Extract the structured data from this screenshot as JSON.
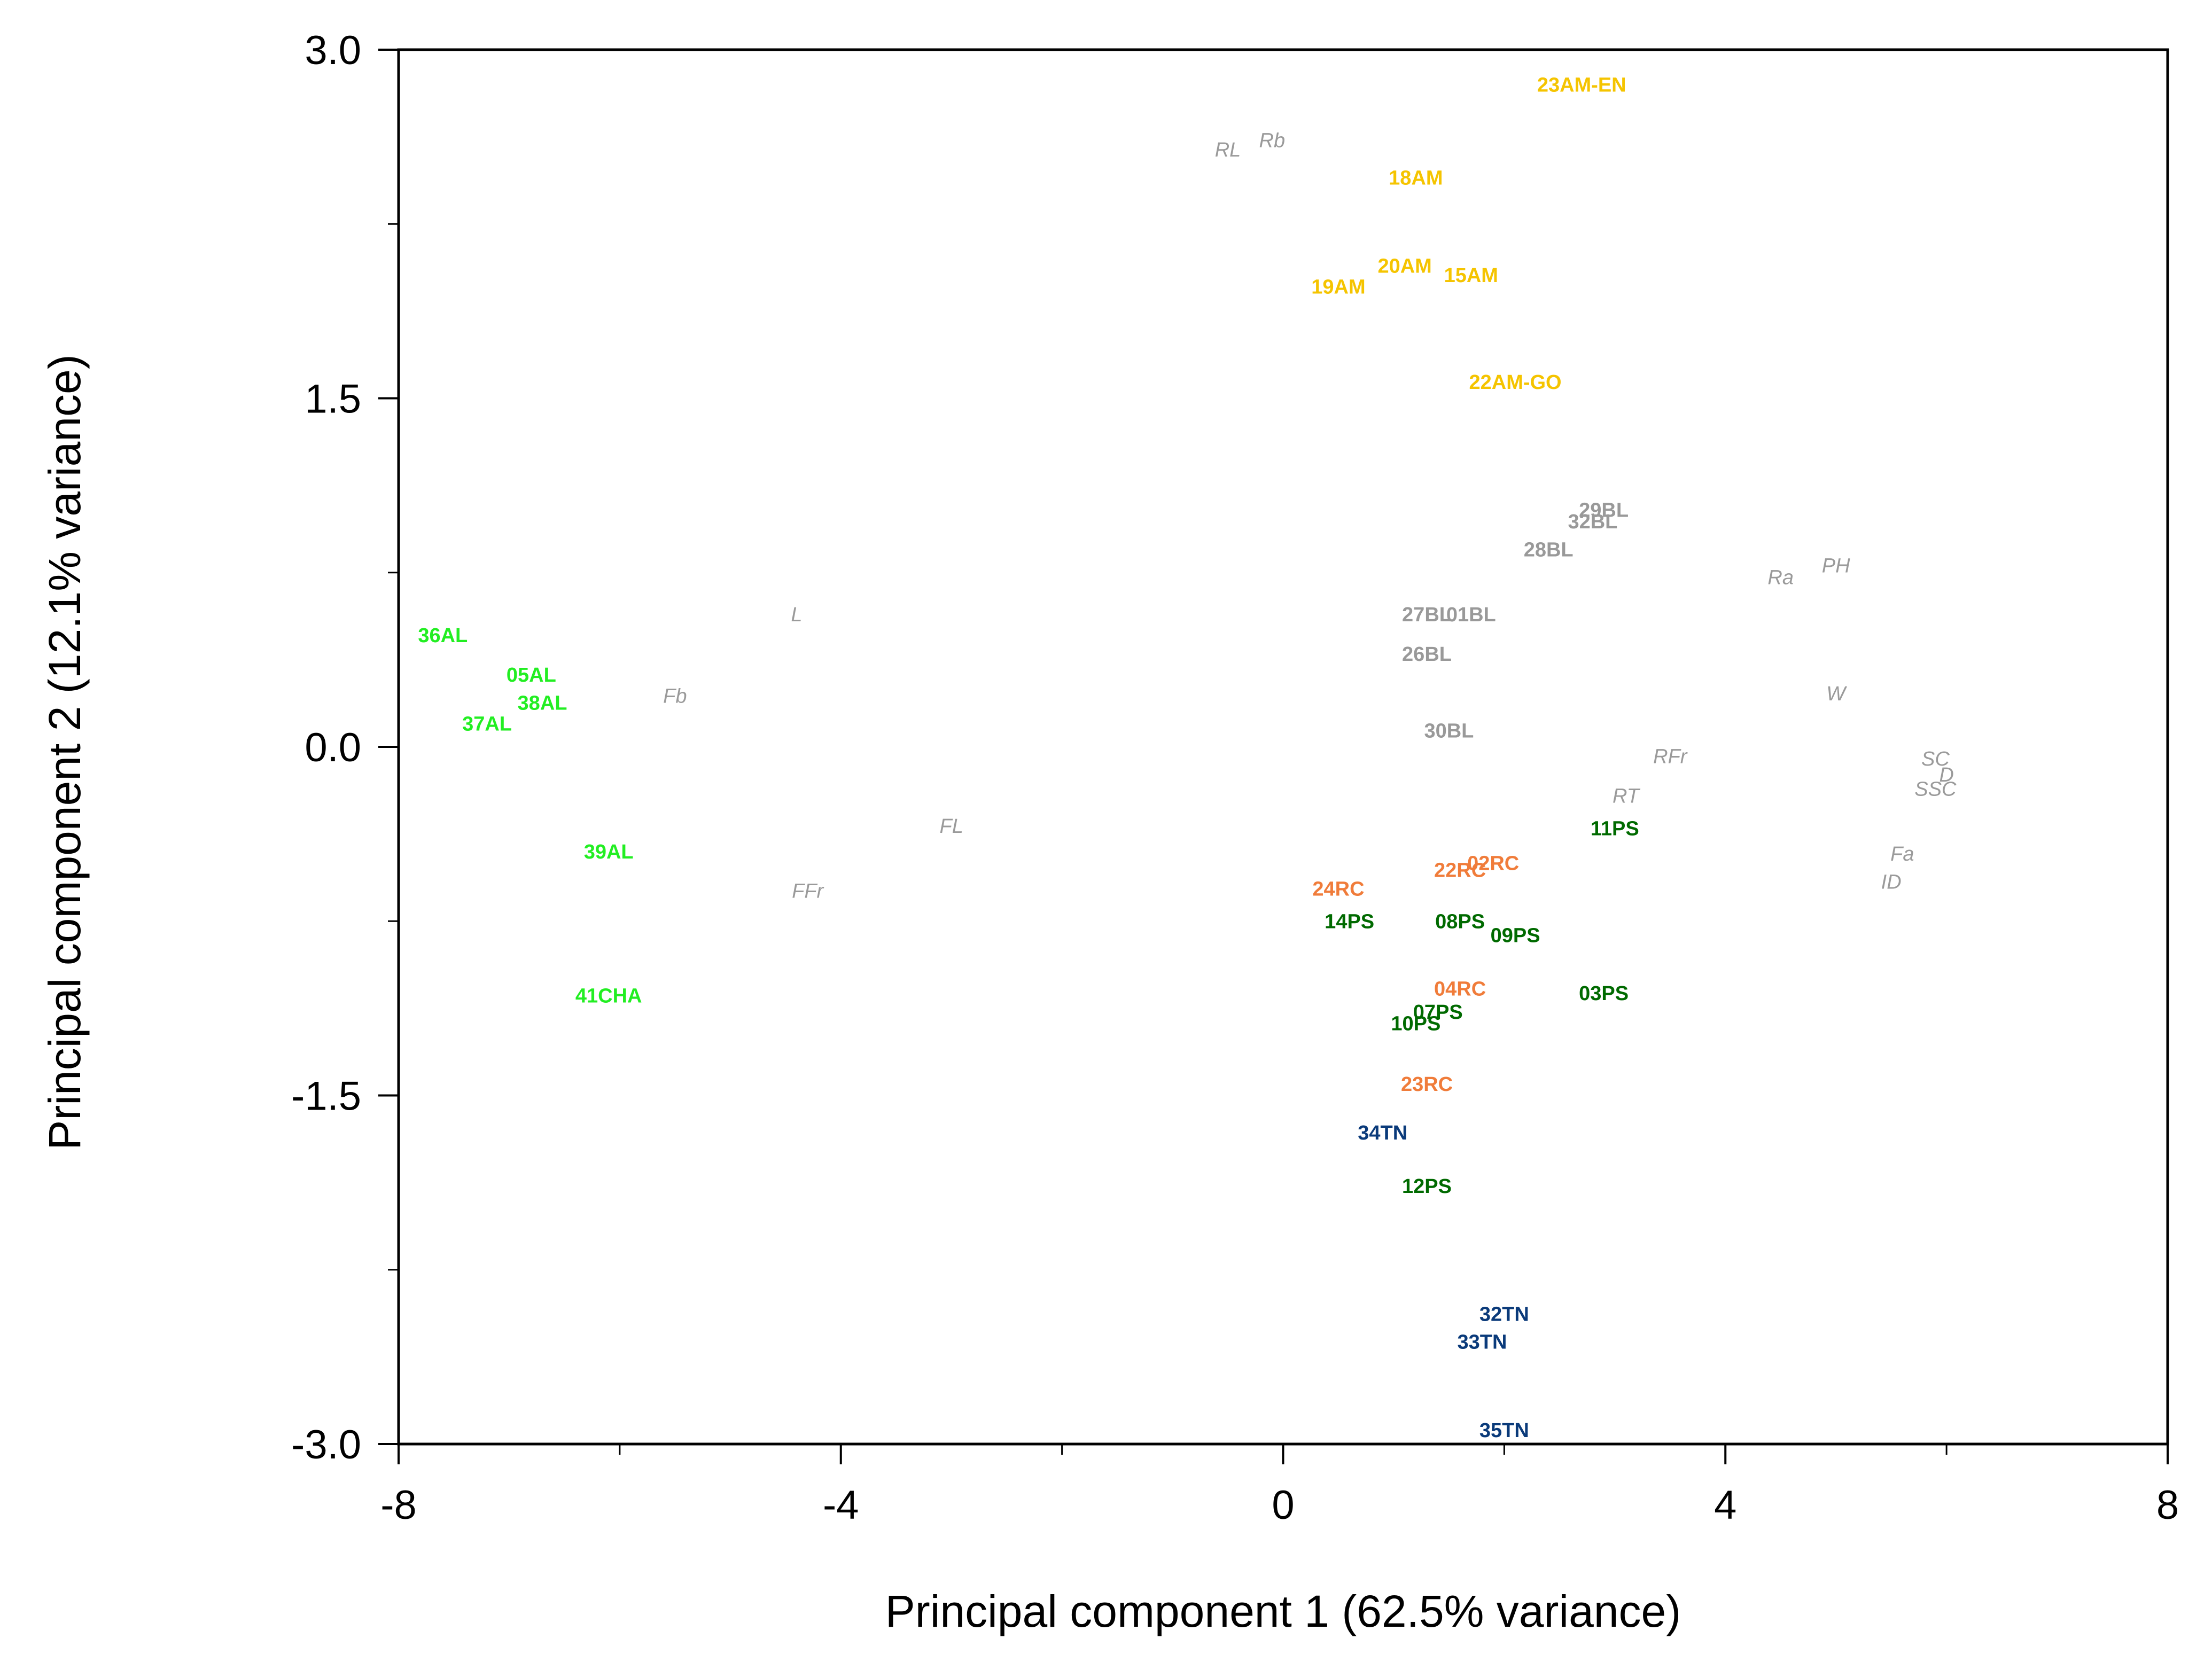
{
  "chart_data": {
    "type": "scatter",
    "title": "",
    "xlabel": "Principal component 1 (62.5% variance)",
    "ylabel": "Principal component 2 (12.1% variance)",
    "xlim": [
      -8,
      8
    ],
    "ylim": [
      -3.0,
      3.0
    ],
    "x_ticks": [
      {
        "value": -8,
        "label": "-8"
      },
      {
        "value": -4,
        "label": "-4"
      },
      {
        "value": 0,
        "label": "0"
      },
      {
        "value": 4,
        "label": "4"
      },
      {
        "value": 8,
        "label": "8"
      }
    ],
    "x_minor_ticks": [
      -6,
      -2,
      2,
      6
    ],
    "y_ticks": [
      {
        "value": 3.0,
        "label": "3.0"
      },
      {
        "value": 1.5,
        "label": "1.5"
      },
      {
        "value": 0.0,
        "label": "0.0"
      },
      {
        "value": -1.5,
        "label": "-1.5"
      },
      {
        "value": -3.0,
        "label": "-3.0"
      }
    ],
    "y_minor_ticks": [
      2.25,
      0.75,
      -0.75,
      -2.25
    ],
    "grid": false,
    "colors": {
      "AM": "#f5c400",
      "BL": "#999999",
      "AL": "#22ee22",
      "RC": "#f07c3a",
      "PS": "#006a00",
      "TN": "#0a3a7a",
      "variables": "#9a9a9a"
    },
    "series": [
      {
        "name": "AM",
        "color_key": "AM",
        "points": [
          {
            "label": "23AM-EN",
            "x": 2.7,
            "y": 2.85
          },
          {
            "label": "18AM",
            "x": 1.2,
            "y": 2.45
          },
          {
            "label": "20AM",
            "x": 1.1,
            "y": 2.07
          },
          {
            "label": "15AM",
            "x": 1.7,
            "y": 2.03
          },
          {
            "label": "19AM",
            "x": 0.5,
            "y": 1.98
          },
          {
            "label": "22AM-GO",
            "x": 2.1,
            "y": 1.57
          }
        ]
      },
      {
        "name": "BL",
        "color_key": "BL",
        "points": [
          {
            "label": "29BL",
            "x": 2.9,
            "y": 1.02
          },
          {
            "label": "32BL",
            "x": 2.8,
            "y": 0.97
          },
          {
            "label": "28BL",
            "x": 2.4,
            "y": 0.85
          },
          {
            "label": "27BL",
            "x": 1.3,
            "y": 0.57
          },
          {
            "label": "01BL",
            "x": 1.7,
            "y": 0.57
          },
          {
            "label": "26BL",
            "x": 1.3,
            "y": 0.4
          },
          {
            "label": "30BL",
            "x": 1.5,
            "y": 0.07
          }
        ]
      },
      {
        "name": "AL",
        "color_key": "AL",
        "points": [
          {
            "label": "36AL",
            "x": -7.6,
            "y": 0.48
          },
          {
            "label": "05AL",
            "x": -6.8,
            "y": 0.31
          },
          {
            "label": "38AL",
            "x": -6.7,
            "y": 0.19
          },
          {
            "label": "37AL",
            "x": -7.2,
            "y": 0.1
          },
          {
            "label": "39AL",
            "x": -6.1,
            "y": -0.45
          },
          {
            "label": "41CHA",
            "x": -6.1,
            "y": -1.07
          }
        ]
      },
      {
        "name": "RC",
        "color_key": "RC",
        "points": [
          {
            "label": "02RC",
            "x": 1.9,
            "y": -0.5
          },
          {
            "label": "22RC",
            "x": 1.6,
            "y": -0.53
          },
          {
            "label": "24RC",
            "x": 0.5,
            "y": -0.61
          },
          {
            "label": "04RC",
            "x": 1.6,
            "y": -1.04
          },
          {
            "label": "23RC",
            "x": 1.3,
            "y": -1.45
          }
        ]
      },
      {
        "name": "PS",
        "color_key": "PS",
        "points": [
          {
            "label": "11PS",
            "x": 3.0,
            "y": -0.35
          },
          {
            "label": "14PS",
            "x": 0.6,
            "y": -0.75
          },
          {
            "label": "08PS",
            "x": 1.6,
            "y": -0.75
          },
          {
            "label": "09PS",
            "x": 2.1,
            "y": -0.81
          },
          {
            "label": "03PS",
            "x": 2.9,
            "y": -1.06
          },
          {
            "label": "07PS",
            "x": 1.4,
            "y": -1.14
          },
          {
            "label": "10PS",
            "x": 1.2,
            "y": -1.19
          },
          {
            "label": "12PS",
            "x": 1.3,
            "y": -1.89
          }
        ]
      },
      {
        "name": "TN",
        "color_key": "TN",
        "points": [
          {
            "label": "34TN",
            "x": 0.9,
            "y": -1.66
          },
          {
            "label": "32TN",
            "x": 2.0,
            "y": -2.44
          },
          {
            "label": "33TN",
            "x": 1.8,
            "y": -2.56
          },
          {
            "label": "35TN",
            "x": 2.0,
            "y": -2.94
          }
        ]
      }
    ],
    "variables": [
      {
        "label": "RL",
        "x": -0.5,
        "y": 2.57
      },
      {
        "label": "Rb",
        "x": -0.1,
        "y": 2.61
      },
      {
        "label": "L",
        "x": -4.4,
        "y": 0.57
      },
      {
        "label": "Fb",
        "x": -5.5,
        "y": 0.22
      },
      {
        "label": "FL",
        "x": -3.0,
        "y": -0.34
      },
      {
        "label": "FFr",
        "x": -4.3,
        "y": -0.62
      },
      {
        "label": "Ra",
        "x": 4.5,
        "y": 0.73
      },
      {
        "label": "PH",
        "x": 5.0,
        "y": 0.78
      },
      {
        "label": "W",
        "x": 5.0,
        "y": 0.23
      },
      {
        "label": "RFr",
        "x": 3.5,
        "y": -0.04
      },
      {
        "label": "RT",
        "x": 3.1,
        "y": -0.21
      },
      {
        "label": "SC",
        "x": 5.9,
        "y": -0.05
      },
      {
        "label": "D",
        "x": 6.0,
        "y": -0.12
      },
      {
        "label": "SSC",
        "x": 5.9,
        "y": -0.18
      },
      {
        "label": "Fa",
        "x": 5.6,
        "y": -0.46
      },
      {
        "label": "ID",
        "x": 5.5,
        "y": -0.58
      }
    ]
  }
}
